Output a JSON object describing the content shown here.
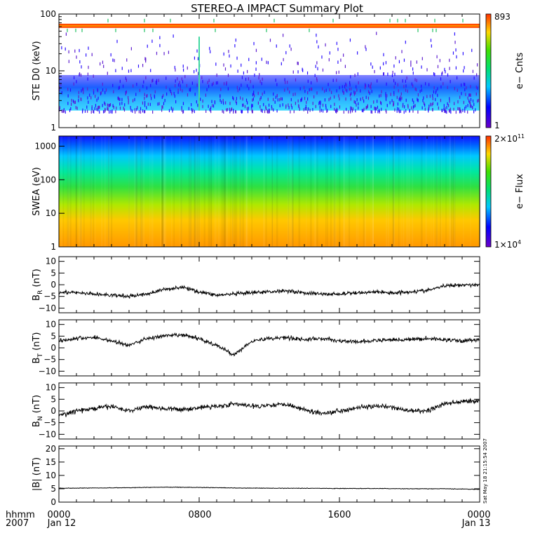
{
  "title": "STEREO-A IMPACT Summary Plot",
  "footer": {
    "left_top": "hhmm",
    "left_bottom": "2007",
    "ticks": [
      {
        "top": "0000",
        "bottom": "Jan 12"
      },
      {
        "top": "0800",
        "bottom": ""
      },
      {
        "top": "1600",
        "bottom": ""
      },
      {
        "top": "0000",
        "bottom": "Jan 13"
      }
    ]
  },
  "timestamp": "Sat May 18 21:15:54 2007",
  "colors": {
    "trace": "#000000",
    "axis": "#000000"
  },
  "chart_data": [
    {
      "type": "heatmap",
      "ylabel": "STE D0 (keV)",
      "yscale": "log",
      "ylim": [
        1,
        100
      ],
      "y_ticks": [
        "1",
        "10",
        "100"
      ],
      "colorbar": {
        "label": "e− Cnts",
        "max_label": "893",
        "min_label": "1"
      }
    },
    {
      "type": "heatmap",
      "ylabel": "SWEA (eV)",
      "yscale": "log",
      "ylim": [
        1,
        2000
      ],
      "y_ticks": [
        "1",
        "10",
        "100",
        "1000"
      ],
      "colorbar": {
        "label": "e− Flux",
        "max_label": "2×10",
        "max_exp": "11",
        "min_label": "1×10",
        "min_exp": "4"
      }
    },
    {
      "type": "line",
      "ylabel": "B",
      "ylabel_sub": "R",
      "ylabel_unit": " (nT)",
      "ylim": [
        -12,
        12
      ],
      "y_ticks": [
        "10",
        "5",
        "0",
        "−5",
        "−10"
      ],
      "y_tick_values": [
        10,
        5,
        0,
        -5,
        -10
      ],
      "series": [
        {
          "x_hours": [
            0,
            1,
            2,
            3,
            4,
            5,
            6,
            7,
            8,
            9,
            10,
            11,
            12,
            13,
            14,
            15,
            16,
            17,
            18,
            19,
            20,
            21,
            22,
            23,
            24
          ],
          "values": [
            -3,
            -3.5,
            -4,
            -4.5,
            -5,
            -4,
            -2,
            -1,
            -3,
            -4.5,
            -4,
            -3.5,
            -3,
            -2.5,
            -3.5,
            -4,
            -4,
            -3.5,
            -3,
            -3.5,
            -3,
            -2.5,
            -0.5,
            0,
            0
          ]
        }
      ]
    },
    {
      "type": "line",
      "ylabel": "B",
      "ylabel_sub": "T",
      "ylabel_unit": " (nT)",
      "ylim": [
        -12,
        12
      ],
      "y_ticks": [
        "10",
        "5",
        "0",
        "−5",
        "−10"
      ],
      "y_tick_values": [
        10,
        5,
        0,
        -5,
        -10
      ],
      "series": [
        {
          "x_hours": [
            0,
            1,
            2,
            3,
            4,
            5,
            6,
            7,
            8,
            9,
            10,
            11,
            12,
            13,
            14,
            15,
            16,
            17,
            18,
            19,
            20,
            21,
            22,
            23,
            24
          ],
          "values": [
            3,
            4,
            4.5,
            3,
            1,
            4,
            5,
            5.5,
            4,
            1,
            -3,
            3,
            4,
            4.5,
            3.5,
            4,
            3,
            2.5,
            3,
            3.5,
            3.5,
            4,
            3.5,
            3,
            3.5
          ]
        }
      ]
    },
    {
      "type": "line",
      "ylabel": "B",
      "ylabel_sub": "N",
      "ylabel_unit": " (nT)",
      "ylim": [
        -12,
        12
      ],
      "y_ticks": [
        "10",
        "5",
        "0",
        "−5",
        "−10"
      ],
      "y_tick_values": [
        10,
        5,
        0,
        -5,
        -10
      ],
      "series": [
        {
          "x_hours": [
            0,
            1,
            2,
            3,
            4,
            5,
            6,
            7,
            8,
            9,
            10,
            11,
            12,
            13,
            14,
            15,
            16,
            17,
            18,
            19,
            20,
            21,
            22,
            23,
            24
          ],
          "values": [
            -2,
            0,
            1,
            2,
            0,
            2,
            1,
            0.5,
            1.5,
            2,
            3,
            2,
            2.5,
            3,
            0.5,
            -1,
            0,
            1.5,
            2,
            1.5,
            0,
            0,
            3,
            4,
            4.5
          ]
        }
      ]
    },
    {
      "type": "line",
      "ylabel": "|B| (nT)",
      "ylim": [
        0,
        21
      ],
      "y_ticks": [
        "20",
        "15",
        "10",
        "5",
        "0"
      ],
      "y_tick_values": [
        20,
        15,
        10,
        5,
        0
      ],
      "series": [
        {
          "x_hours": [
            0,
            2,
            4,
            6,
            8,
            10,
            12,
            14,
            16,
            18,
            20,
            22,
            24
          ],
          "values": [
            5.2,
            5.3,
            5.4,
            5.6,
            5.5,
            5.3,
            5.2,
            5.2,
            5.1,
            5.1,
            5.0,
            5.0,
            4.8
          ]
        }
      ]
    }
  ]
}
